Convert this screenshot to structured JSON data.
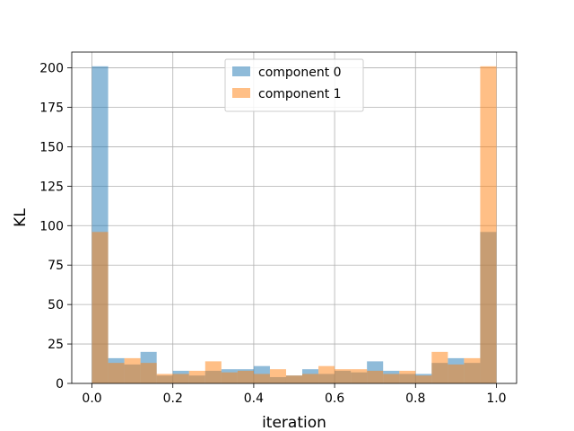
{
  "chart_data": {
    "type": "bar",
    "subtype": "histogram-overlay",
    "xlabel": "iteration",
    "ylabel": "KL",
    "xlim": [
      -0.05,
      1.05
    ],
    "ylim": [
      0,
      210
    ],
    "xticks": [
      0.0,
      0.2,
      0.4,
      0.6,
      0.8,
      1.0
    ],
    "xtick_labels": [
      "0.0",
      "0.2",
      "0.4",
      "0.6",
      "0.8",
      "1.0"
    ],
    "yticks": [
      0,
      25,
      50,
      75,
      100,
      125,
      150,
      175,
      200
    ],
    "ytick_labels": [
      "0",
      "25",
      "50",
      "75",
      "100",
      "125",
      "150",
      "175",
      "200"
    ],
    "grid": true,
    "legend_position": "top-center",
    "bin_edges": [
      0.0,
      0.04,
      0.08,
      0.12,
      0.16,
      0.2,
      0.24,
      0.28,
      0.32,
      0.36,
      0.4,
      0.44,
      0.48,
      0.52,
      0.56,
      0.6,
      0.64,
      0.68,
      0.72,
      0.76,
      0.8,
      0.84,
      0.88,
      0.92,
      0.96,
      1.0
    ],
    "series": [
      {
        "name": "component 0",
        "color": "#1f77b4",
        "values": [
          201,
          16,
          12,
          20,
          5,
          8,
          5,
          8,
          9,
          9,
          11,
          4,
          5,
          9,
          6,
          8,
          7,
          14,
          8,
          6,
          6,
          13,
          16,
          13,
          96
        ]
      },
      {
        "name": "component 1",
        "color": "#ff7f0e",
        "values": [
          96,
          13,
          16,
          13,
          6,
          6,
          8,
          14,
          7,
          8,
          6,
          9,
          5,
          6,
          11,
          9,
          9,
          8,
          6,
          8,
          5,
          20,
          12,
          16,
          201
        ]
      }
    ]
  }
}
